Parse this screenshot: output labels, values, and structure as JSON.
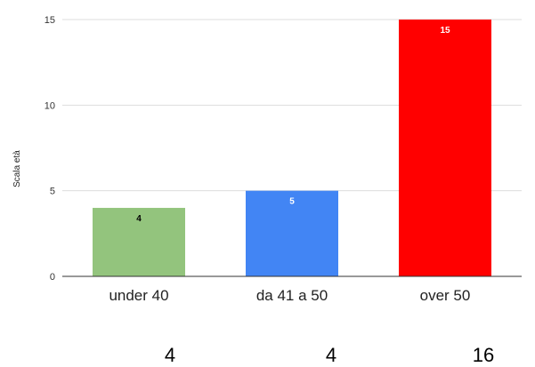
{
  "chart_data": {
    "type": "bar",
    "title": "",
    "xlabel": "",
    "ylabel": "Scala età",
    "categories": [
      "under 40",
      "da 41 a 50",
      "over 50"
    ],
    "values": [
      4,
      5,
      15
    ],
    "data_labels": [
      "4",
      "5",
      "15"
    ],
    "colors": [
      "#93c47d",
      "#4285f4",
      "#ff0000"
    ],
    "label_colors": [
      "#000000",
      "#ffffff",
      "#ffffff"
    ],
    "ylim": [
      0,
      15
    ],
    "yticks": [
      0,
      5,
      10,
      15
    ],
    "grid": true,
    "legend": "none"
  },
  "footer_numbers": [
    "4",
    "4",
    "16"
  ]
}
